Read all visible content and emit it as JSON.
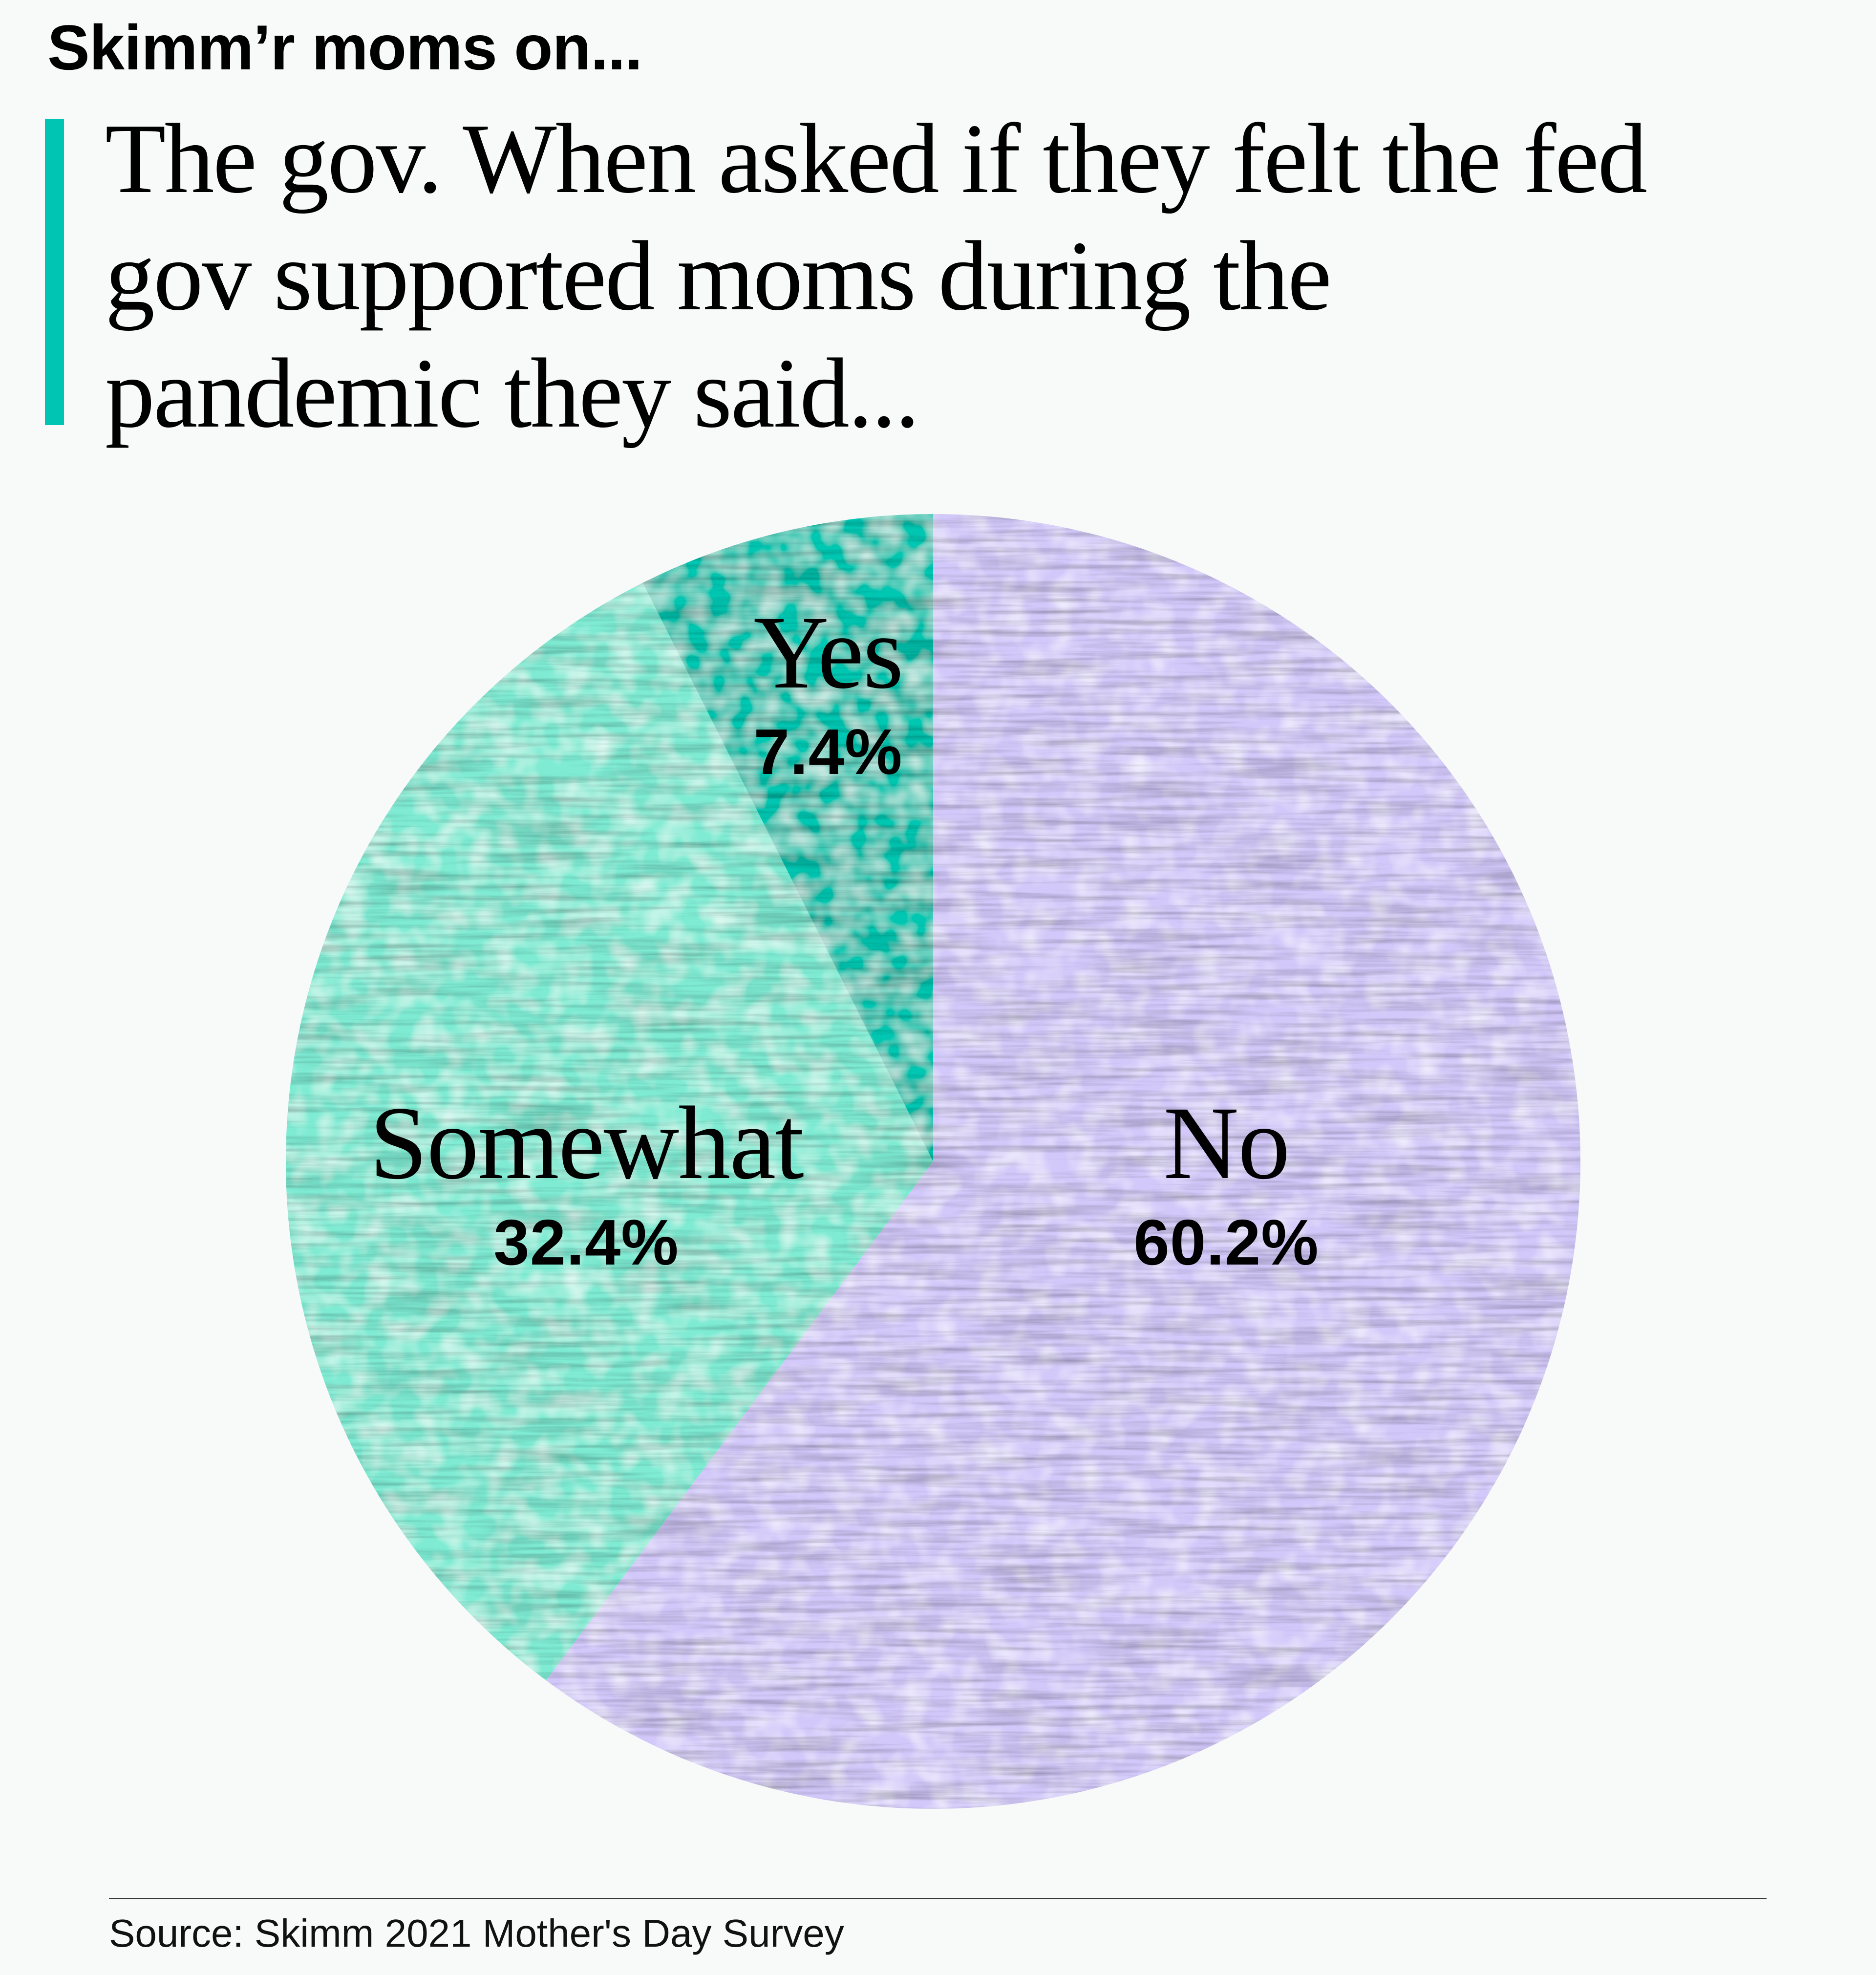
{
  "header": {
    "subtitle": "Skimm’r moms on...",
    "title_lines": [
      "The gov. When asked if they felt the fed",
      "gov supported moms during the",
      "pandemic they said..."
    ],
    "accent_color": "#00C5B3"
  },
  "chart_data": {
    "type": "pie",
    "title": "The gov. When asked if they felt the fed gov supported moms during the pandemic they said...",
    "subtitle": "Skimm’r moms on...",
    "categories": [
      "No",
      "Somewhat",
      "Yes"
    ],
    "values": [
      60.2,
      32.4,
      7.4
    ],
    "unit": "%",
    "start_angle_deg": 0,
    "direction": "clockwise",
    "colors": [
      "#D2C8F9",
      "#7FEBD3",
      "#00C7B2"
    ],
    "labels": [
      {
        "category": "No",
        "value_label": "60.2%"
      },
      {
        "category": "Somewhat",
        "value_label": "32.4%"
      },
      {
        "category": "Yes",
        "value_label": "7.4%"
      }
    ],
    "source": "Source: Skimm 2021 Mother's Day Survey"
  },
  "footer": {
    "source": "Source: Skimm 2021 Mother's Day Survey"
  }
}
